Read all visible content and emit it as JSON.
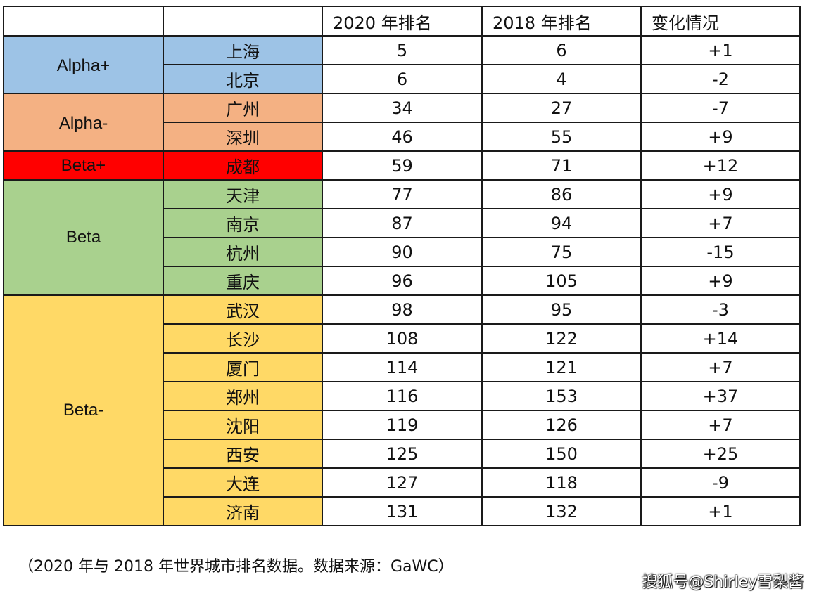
{
  "header": {
    "col0": "",
    "col1": "",
    "col2": "2020 年排名",
    "col3": "2018 年排名",
    "col4": "变化情况"
  },
  "tiers": [
    {
      "label": "Alpha+",
      "color": "#9dc3e6"
    },
    {
      "label": "Alpha-",
      "color": "#f4b183"
    },
    {
      "label": "Beta+",
      "color": "#ff0000"
    },
    {
      "label": "Beta",
      "color": "#a9d18e"
    },
    {
      "label": "Beta-",
      "color": "#ffd966"
    }
  ],
  "rows": [
    {
      "city": "上海",
      "r2020": "5",
      "r2018": "6",
      "change": "+1"
    },
    {
      "city": "北京",
      "r2020": "6",
      "r2018": "4",
      "change": "-2"
    },
    {
      "city": "广州",
      "r2020": "34",
      "r2018": "27",
      "change": "-7"
    },
    {
      "city": "深圳",
      "r2020": "46",
      "r2018": "55",
      "change": "+9"
    },
    {
      "city": "成都",
      "r2020": "59",
      "r2018": "71",
      "change": "+12"
    },
    {
      "city": "天津",
      "r2020": "77",
      "r2018": "86",
      "change": "+9"
    },
    {
      "city": "南京",
      "r2020": "87",
      "r2018": "94",
      "change": "+7"
    },
    {
      "city": "杭州",
      "r2020": "90",
      "r2018": "75",
      "change": "-15"
    },
    {
      "city": "重庆",
      "r2020": "96",
      "r2018": "105",
      "change": "+9"
    },
    {
      "city": "武汉",
      "r2020": "98",
      "r2018": "95",
      "change": "-3"
    },
    {
      "city": "长沙",
      "r2020": "108",
      "r2018": "122",
      "change": "+14"
    },
    {
      "city": "厦门",
      "r2020": "114",
      "r2018": "121",
      "change": "+7"
    },
    {
      "city": "郑州",
      "r2020": "116",
      "r2018": "153",
      "change": "+37"
    },
    {
      "city": "沈阳",
      "r2020": "119",
      "r2018": "126",
      "change": "+7"
    },
    {
      "city": "西安",
      "r2020": "125",
      "r2018": "150",
      "change": "+25"
    },
    {
      "city": "大连",
      "r2020": "127",
      "r2018": "118",
      "change": "-9"
    },
    {
      "city": "济南",
      "r2020": "131",
      "r2018": "132",
      "change": "+1"
    }
  ],
  "caption": "（2020 年与 2018 年世界城市排名数据。数据来源：GaWC）",
  "watermark": "搜狐号@Shirley雪梨酱"
}
